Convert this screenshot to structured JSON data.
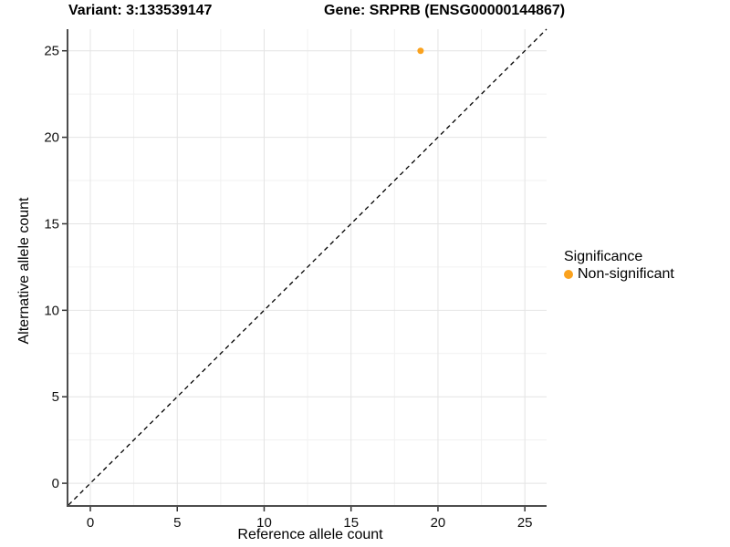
{
  "titles": {
    "left": "Variant: 3:133539147",
    "right": "Gene: SRPRB (ENSG00000144867)"
  },
  "chart_data": {
    "type": "scatter",
    "xlabel": "Reference allele count",
    "ylabel": "Alternative allele count",
    "xlim": [
      -1.26,
      26.25
    ],
    "ylim": [
      -1.26,
      26.25
    ],
    "x_ticks": [
      0,
      5,
      10,
      15,
      20,
      25
    ],
    "y_ticks": [
      0,
      5,
      10,
      15,
      20,
      25
    ],
    "minor_step": 2.5,
    "grid": true,
    "reference_line": {
      "type": "identity",
      "equation": "y = x",
      "style": "dashed",
      "color": "#000000"
    },
    "points": [
      {
        "x": 19,
        "y": 25,
        "series": "Non-significant"
      }
    ],
    "legend": {
      "title": "Significance",
      "position": "right",
      "items": [
        {
          "label": "Non-significant",
          "color": "#FAA21E"
        }
      ]
    }
  },
  "colors": {
    "background": "#ffffff",
    "grid_major": "#E4E4E4",
    "grid_minor": "#F1F1F1",
    "axis_line": "#4D4D4D",
    "tick_mark": "#333333",
    "tick_label": "#111111",
    "point": "#FAA21E"
  }
}
